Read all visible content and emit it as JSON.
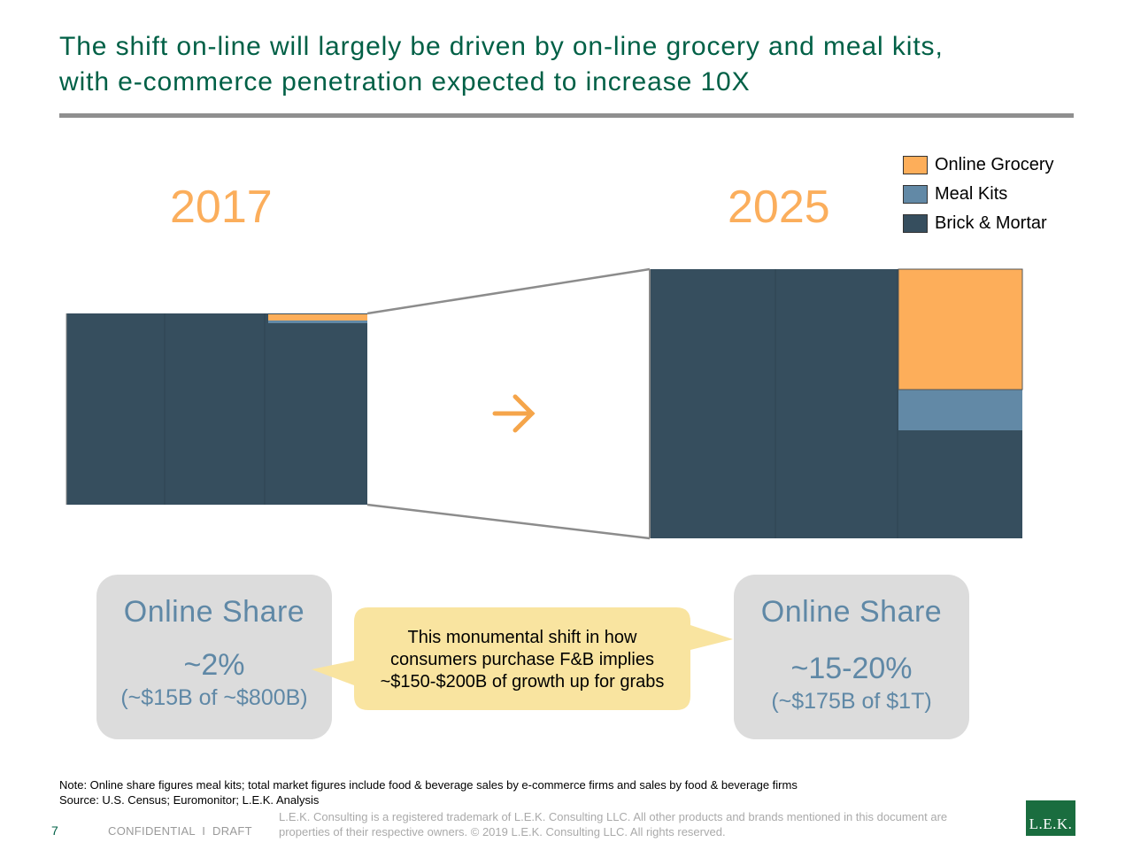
{
  "title": {
    "line1": "The shift on-line will largely be driven by on-line grocery and meal kits,",
    "line2": "with e-commerce penetration expected to increase 10X"
  },
  "chart_data": {
    "type": "bar",
    "stacked": true,
    "categories": [
      "2017",
      "2025"
    ],
    "series": [
      {
        "name": "Brick & Mortar",
        "color": "#364e5e"
      },
      {
        "name": "Meal Kits",
        "color": "#6289a6"
      },
      {
        "name": "Online Grocery",
        "color": "#fdae5a"
      }
    ],
    "legend_position": "top-right",
    "arrow_icon": "right-arrow-icon",
    "arrow_color": "#f5a54a"
  },
  "legend": [
    {
      "label": "Online Grocery",
      "color": "#fdae5a"
    },
    {
      "label": "Meal Kits",
      "color": "#6289a6"
    },
    {
      "label": "Brick & Mortar",
      "color": "#364e5e"
    }
  ],
  "years": {
    "left": "2017",
    "right": "2025"
  },
  "share_2017": {
    "heading": "Online Share",
    "pct": "~2%",
    "detail": "(~$15B of ~$800B)"
  },
  "share_2025": {
    "heading": "Online Share",
    "pct": "~15-20%",
    "detail": "(~$175B of $1T)"
  },
  "callout": {
    "line1": "This monumental shift in how",
    "line2": "consumers purchase F&B implies",
    "line3": "~$150-$200B of growth up for grabs",
    "color": "#f9e4a0"
  },
  "note": "Note: Online share figures meal kits; total market figures include food & beverage sales by e-commerce firms and sales by food & beverage firms",
  "source": "Source: U.S. Census; Euromonitor; L.E.K. Analysis",
  "footer": {
    "page": "7",
    "confidential": "CONFIDENTIAL  I  DRAFT",
    "legal1": "L.E.K. Consulting is a registered trademark of L.E.K. Consulting LLC.  All other products and brands mentioned in this document are",
    "legal2": "properties of their respective owners. © 2019 L.E.K. Consulting LLC.  All rights reserved.",
    "logo": "L.E.K."
  }
}
